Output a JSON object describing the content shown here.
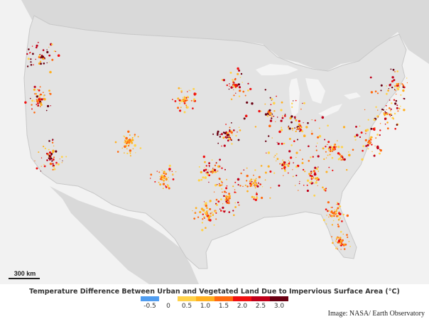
{
  "map": {
    "colors": {
      "ocean": "#f2f2f2",
      "land": "#d9d9d9",
      "us_land": "#e3e3e3",
      "lakes": "#f4f4f4",
      "borders": "#c8c8c8"
    }
  },
  "scale_bar": {
    "label": "300 km"
  },
  "legend": {
    "title": "Temperature Difference Between Urban and Vegetated Land Due to Impervious Surface Area (°C)",
    "unit": "°C",
    "swatches": [
      "#4f9cf0",
      "#ffffff",
      "#ffd24a",
      "#ffb020",
      "#ff6a10",
      "#f01010",
      "#c0001a",
      "#6a0012"
    ],
    "ticks": [
      "-0.5",
      "0",
      "0.5",
      "1.0",
      "1.5",
      "2.0",
      "2.5",
      "3.0"
    ]
  },
  "credit": "Image: NASA/ Earth Observatory"
}
